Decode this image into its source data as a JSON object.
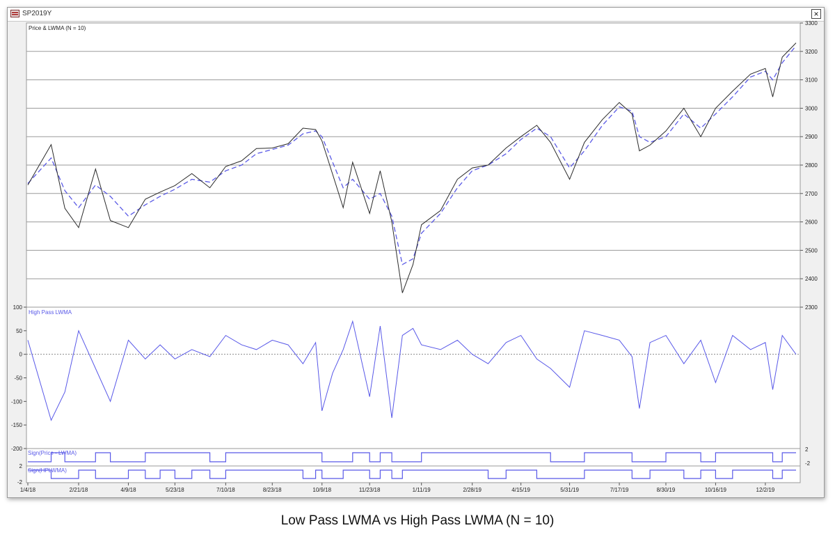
{
  "window": {
    "title": "SP2019Y",
    "close_glyph": "×"
  },
  "caption": "Low Pass LWMA vs High Pass LWMA (N = 10)",
  "colors": {
    "price": "#2a2a2a",
    "lwma": "#5a5ae6",
    "hp": "#5858e8",
    "grid": "#9a9a9a",
    "zero": "#8a8a8a"
  },
  "chart_data": [
    {
      "type": "line",
      "title": "Price & LWMA (N = 10)",
      "ylim": [
        2300,
        3300
      ],
      "y_ticks": [
        2300,
        2400,
        2500,
        2600,
        2700,
        2800,
        2900,
        3000,
        3100,
        3200,
        3300
      ],
      "grid": true,
      "x_tick_labels": [
        "1/4/18",
        "2/21/18",
        "4/9/18",
        "5/23/18",
        "7/10/18",
        "8/23/18",
        "10/9/18",
        "11/23/18",
        "1/11/19",
        "2/28/19",
        "4/15/19",
        "5/31/19",
        "7/17/19",
        "8/30/19",
        "10/16/19",
        "12/2/19"
      ],
      "x": [
        "1/4/18",
        "1/26/18",
        "2/8/18",
        "2/21/18",
        "3/9/18",
        "3/23/18",
        "4/9/18",
        "4/25/18",
        "5/9/18",
        "5/23/18",
        "6/8/18",
        "6/25/18",
        "7/10/18",
        "7/25/18",
        "8/8/18",
        "8/23/18",
        "9/7/18",
        "9/21/18",
        "10/3/18",
        "10/9/18",
        "10/19/18",
        "10/29/18",
        "11/7/18",
        "11/23/18",
        "12/3/18",
        "12/14/18",
        "12/24/18",
        "1/3/19",
        "1/11/19",
        "1/29/19",
        "2/14/19",
        "2/28/19",
        "3/15/19",
        "4/1/19",
        "4/15/19",
        "4/30/19",
        "5/13/19",
        "5/31/19",
        "6/14/19",
        "7/1/19",
        "7/17/19",
        "7/29/19",
        "8/5/19",
        "8/15/19",
        "8/30/19",
        "9/16/19",
        "10/2/19",
        "10/16/19",
        "11/1/19",
        "11/18/19",
        "12/2/19",
        "12/9/19",
        "12/18/19",
        "12/31/19"
      ],
      "series": [
        {
          "values": [
            2730,
            2872,
            2648,
            2580,
            2786,
            2605,
            2580,
            2680,
            2705,
            2728,
            2770,
            2720,
            2795,
            2815,
            2858,
            2860,
            2875,
            2930,
            2925,
            2885,
            2768,
            2650,
            2810,
            2630,
            2780,
            2600,
            2350,
            2450,
            2590,
            2640,
            2750,
            2790,
            2800,
            2860,
            2900,
            2940,
            2880,
            2750,
            2880,
            2960,
            3020,
            2980,
            2850,
            2870,
            2920,
            3000,
            2900,
            3000,
            3060,
            3120,
            3140,
            3040,
            3180,
            3230
          ]
        },
        {
          "values": [
            2735,
            2825,
            2710,
            2650,
            2730,
            2690,
            2620,
            2660,
            2690,
            2715,
            2750,
            2740,
            2780,
            2800,
            2840,
            2855,
            2870,
            2910,
            2920,
            2900,
            2810,
            2720,
            2750,
            2680,
            2700,
            2620,
            2450,
            2470,
            2560,
            2630,
            2720,
            2780,
            2800,
            2840,
            2890,
            2930,
            2900,
            2790,
            2850,
            2940,
            3005,
            2990,
            2900,
            2880,
            2900,
            2980,
            2930,
            2980,
            3040,
            3110,
            3130,
            3100,
            3160,
            3220
          ]
        }
      ]
    },
    {
      "type": "line",
      "title": "High Pass LWMA",
      "ylim": [
        -200,
        100
      ],
      "y_ticks": [
        -200,
        -150,
        -100,
        -50,
        0,
        50,
        100
      ],
      "series": [
        {
          "values": [
            30,
            -140,
            -80,
            50,
            -30,
            -100,
            30,
            -10,
            20,
            -10,
            10,
            -5,
            40,
            20,
            10,
            30,
            20,
            -20,
            25,
            -120,
            -40,
            10,
            70,
            -90,
            60,
            -135,
            40,
            55,
            20,
            10,
            30,
            0,
            -20,
            25,
            40,
            -10,
            -30,
            -70,
            50,
            40,
            30,
            -5,
            -115,
            25,
            40,
            -20,
            30,
            -60,
            40,
            10,
            25,
            -75,
            40,
            0
          ]
        }
      ]
    },
    {
      "type": "line",
      "title": "Sign(Price - LWMA)",
      "ylim": [
        -2,
        2
      ],
      "y_ticks": [
        -2,
        2
      ]
    },
    {
      "type": "line",
      "title": "Sign(HPLWMA)",
      "ylim": [
        -2,
        2
      ],
      "y_ticks": [
        -2,
        2
      ]
    }
  ]
}
